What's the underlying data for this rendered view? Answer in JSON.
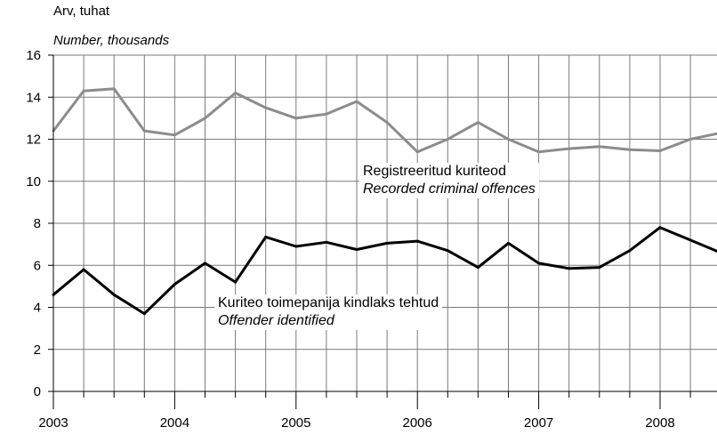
{
  "chart_data": {
    "type": "line",
    "ylabel_et": "Arv, tuhat",
    "ylabel_en": "Number, thousands",
    "ylim": [
      0,
      16
    ],
    "yticks": [
      0,
      2,
      4,
      6,
      8,
      10,
      12,
      14,
      16
    ],
    "year_labels": [
      "2003",
      "2004",
      "2005",
      "2006",
      "2007",
      "2008"
    ],
    "quarters": [
      "2003 Q1",
      "2003 Q2",
      "2003 Q3",
      "2003 Q4",
      "2004 Q1",
      "2004 Q2",
      "2004 Q3",
      "2004 Q4",
      "2005 Q1",
      "2005 Q2",
      "2005 Q3",
      "2005 Q4",
      "2006 Q1",
      "2006 Q2",
      "2006 Q3",
      "2006 Q4",
      "2007 Q1",
      "2007 Q2",
      "2007 Q3",
      "2007 Q4",
      "2008 Q1",
      "2008 Q2",
      "2008 Q3"
    ],
    "grid": true,
    "series": [
      {
        "name_et": "Registreeritud kuriteod",
        "name_en": "Recorded criminal offences",
        "color": "#8c8c8c",
        "values": [
          12.4,
          14.3,
          14.4,
          12.4,
          12.2,
          13.0,
          14.2,
          13.5,
          13.0,
          13.2,
          13.8,
          12.8,
          11.4,
          12.0,
          12.8,
          12.0,
          11.4,
          11.55,
          11.65,
          11.5,
          11.45,
          12.0,
          12.3
        ]
      },
      {
        "name_et": "Kuriteo toimepanija kindlaks tehtud",
        "name_en": "Offender identified",
        "color": "#000000",
        "values": [
          4.6,
          5.8,
          4.6,
          3.7,
          5.1,
          6.1,
          5.2,
          7.35,
          6.9,
          7.1,
          6.75,
          7.05,
          7.15,
          6.7,
          5.9,
          7.05,
          6.1,
          5.85,
          5.9,
          6.7,
          7.8,
          7.2,
          6.6
        ]
      }
    ]
  }
}
